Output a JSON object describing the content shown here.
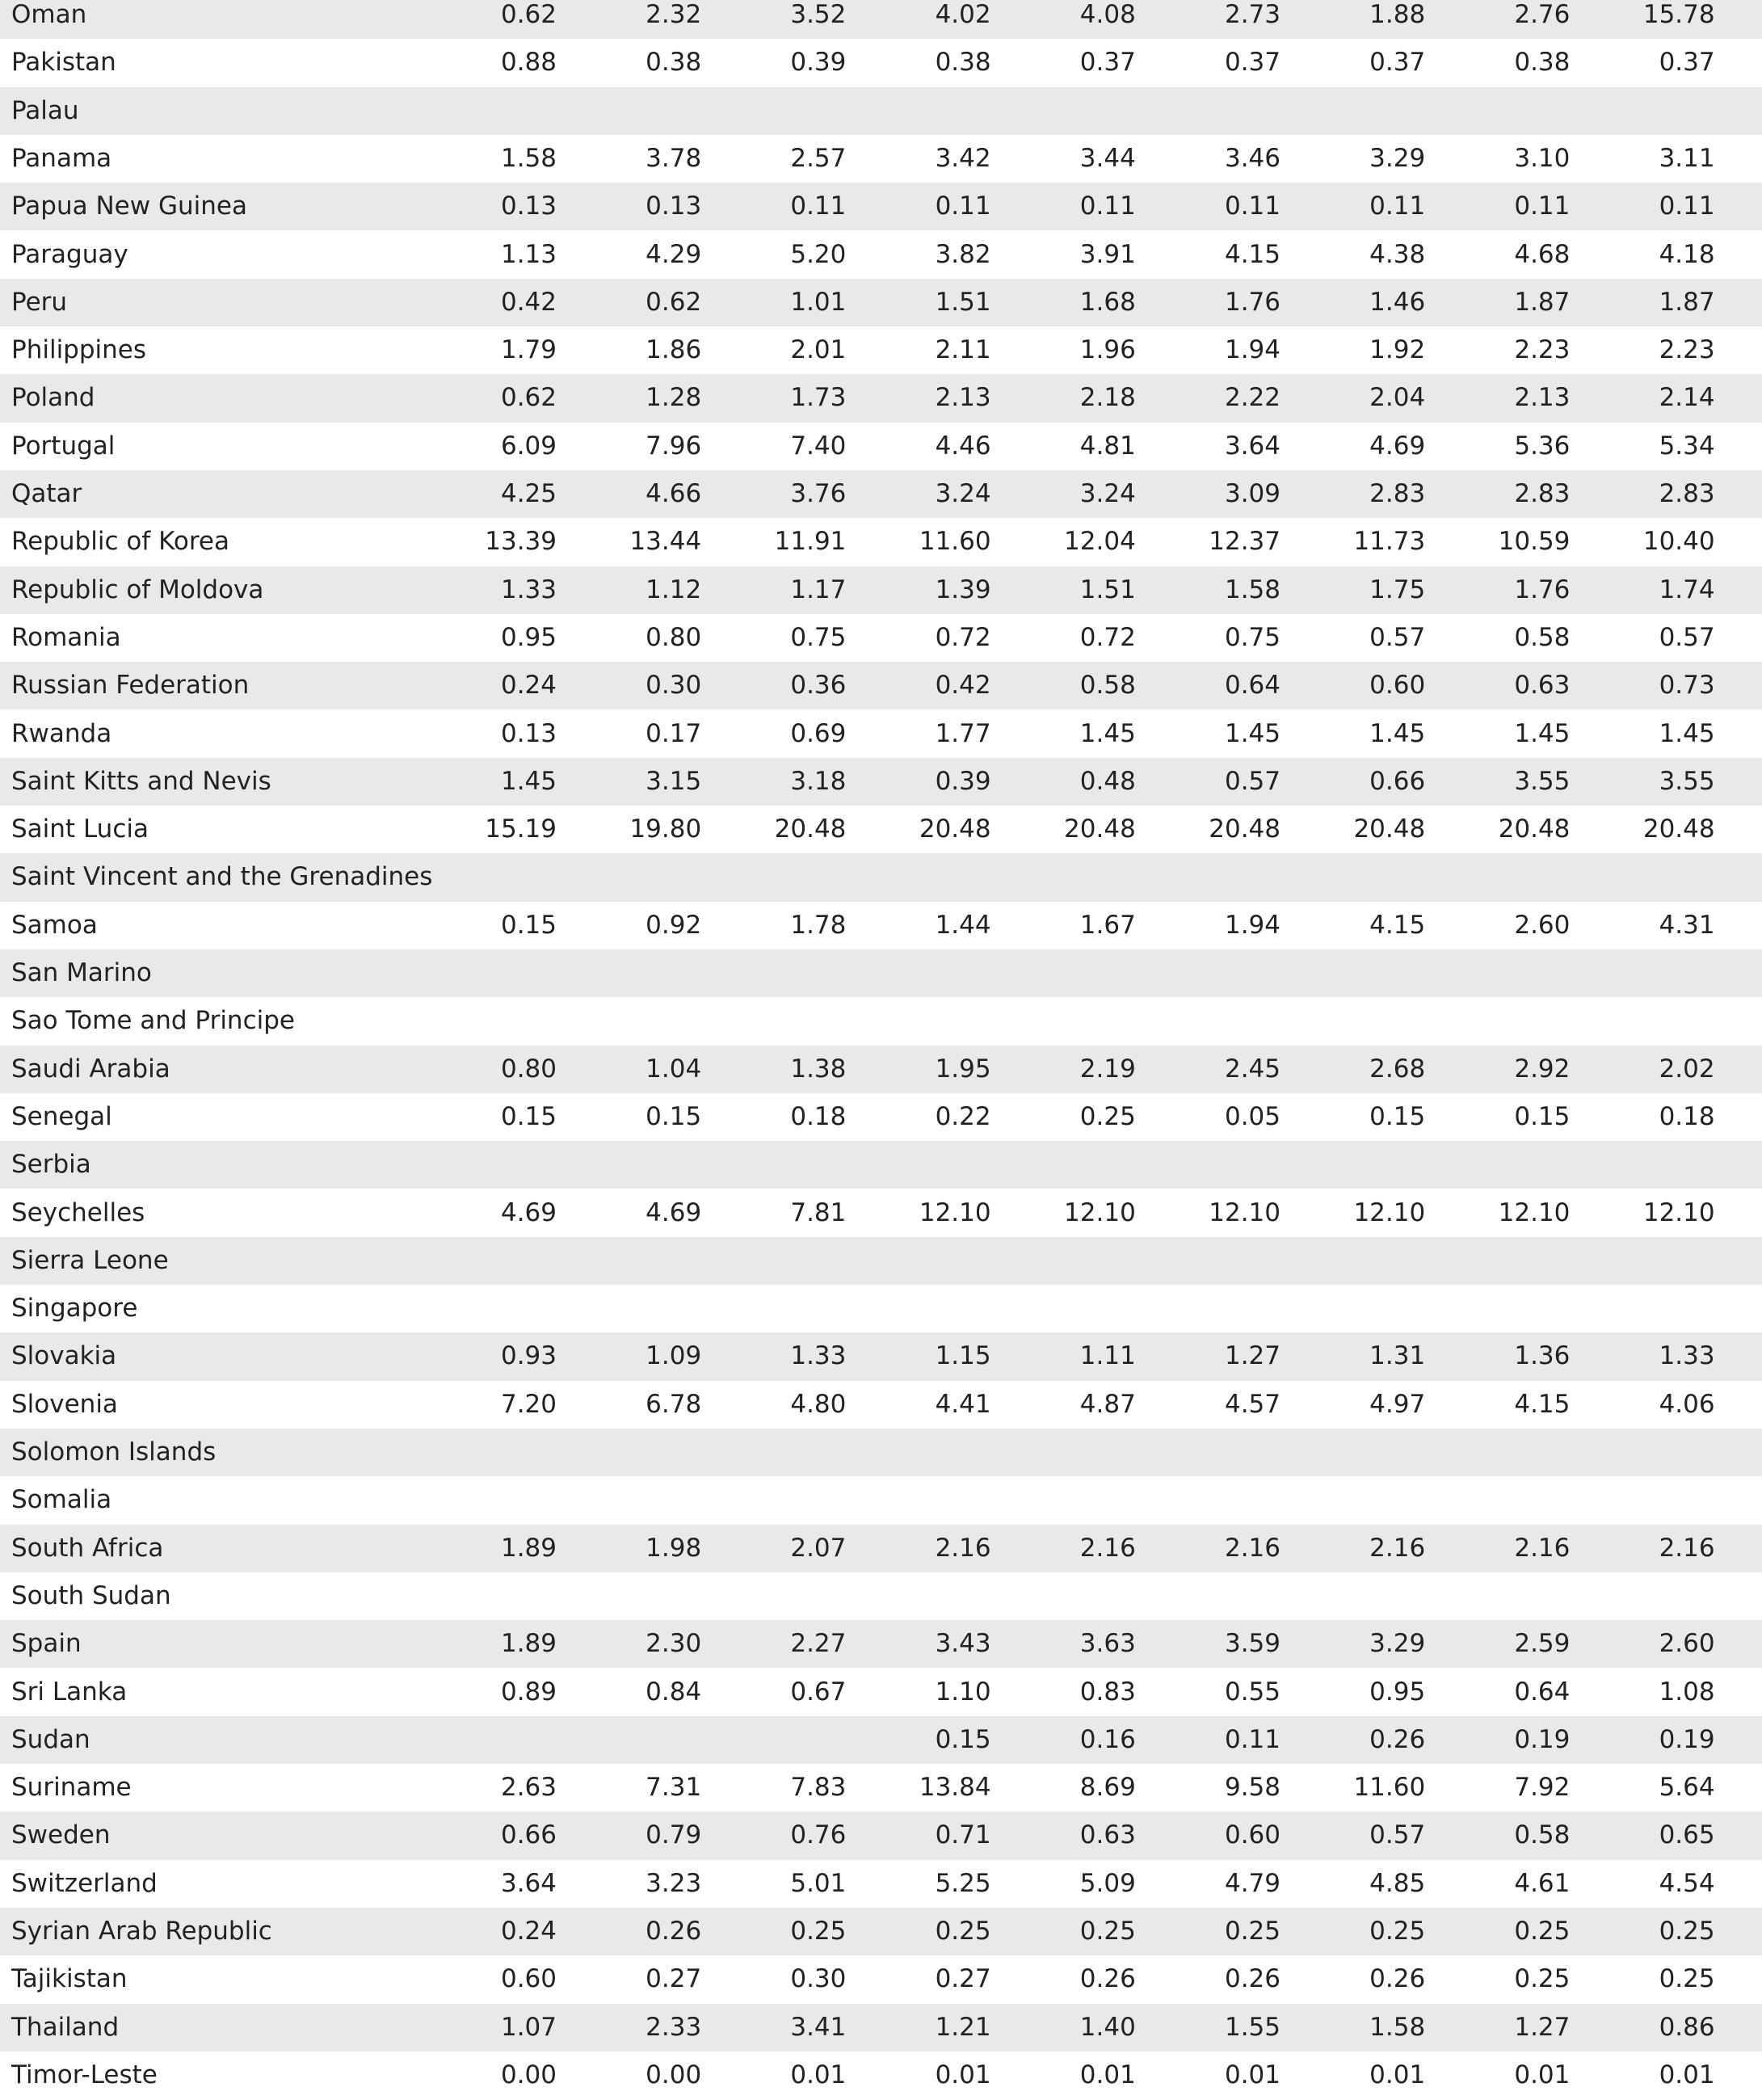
{
  "table": {
    "rows": [
      [
        "Oman",
        "0.62",
        "2.32",
        "3.52",
        "4.02",
        "4.08",
        "2.73",
        "1.88",
        "2.76",
        "15.78"
      ],
      [
        "Pakistan",
        "0.88",
        "0.38",
        "0.39",
        "0.38",
        "0.37",
        "0.37",
        "0.37",
        "0.38",
        "0.37"
      ],
      [
        "Palau",
        null,
        null,
        null,
        null,
        null,
        null,
        null,
        null,
        null
      ],
      [
        "Panama",
        "1.58",
        "3.78",
        "2.57",
        "3.42",
        "3.44",
        "3.46",
        "3.29",
        "3.10",
        "3.11"
      ],
      [
        "Papua New Guinea",
        "0.13",
        "0.13",
        "0.11",
        "0.11",
        "0.11",
        "0.11",
        "0.11",
        "0.11",
        "0.11"
      ],
      [
        "Paraguay",
        "1.13",
        "4.29",
        "5.20",
        "3.82",
        "3.91",
        "4.15",
        "4.38",
        "4.68",
        "4.18"
      ],
      [
        "Peru",
        "0.42",
        "0.62",
        "1.01",
        "1.51",
        "1.68",
        "1.76",
        "1.46",
        "1.87",
        "1.87"
      ],
      [
        "Philippines",
        "1.79",
        "1.86",
        "2.01",
        "2.11",
        "1.96",
        "1.94",
        "1.92",
        "2.23",
        "2.23"
      ],
      [
        "Poland",
        "0.62",
        "1.28",
        "1.73",
        "2.13",
        "2.18",
        "2.22",
        "2.04",
        "2.13",
        "2.14"
      ],
      [
        "Portugal",
        "6.09",
        "7.96",
        "7.40",
        "4.46",
        "4.81",
        "3.64",
        "4.69",
        "5.36",
        "5.34"
      ],
      [
        "Qatar",
        "4.25",
        "4.66",
        "3.76",
        "3.24",
        "3.24",
        "3.09",
        "2.83",
        "2.83",
        "2.83"
      ],
      [
        "Republic of Korea",
        "13.39",
        "13.44",
        "11.91",
        "11.60",
        "12.04",
        "12.37",
        "11.73",
        "10.59",
        "10.40"
      ],
      [
        "Republic of Moldova",
        "1.33",
        "1.12",
        "1.17",
        "1.39",
        "1.51",
        "1.58",
        "1.75",
        "1.76",
        "1.74"
      ],
      [
        "Romania",
        "0.95",
        "0.80",
        "0.75",
        "0.72",
        "0.72",
        "0.75",
        "0.57",
        "0.58",
        "0.57"
      ],
      [
        "Russian Federation",
        "0.24",
        "0.30",
        "0.36",
        "0.42",
        "0.58",
        "0.64",
        "0.60",
        "0.63",
        "0.73"
      ],
      [
        "Rwanda",
        "0.13",
        "0.17",
        "0.69",
        "1.77",
        "1.45",
        "1.45",
        "1.45",
        "1.45",
        "1.45"
      ],
      [
        "Saint Kitts and Nevis",
        "1.45",
        "3.15",
        "3.18",
        "0.39",
        "0.48",
        "0.57",
        "0.66",
        "3.55",
        "3.55"
      ],
      [
        "Saint Lucia",
        "15.19",
        "19.80",
        "20.48",
        "20.48",
        "20.48",
        "20.48",
        "20.48",
        "20.48",
        "20.48"
      ],
      [
        "Saint Vincent and the Grenadines",
        null,
        null,
        null,
        null,
        null,
        null,
        null,
        null,
        null
      ],
      [
        "Samoa",
        "0.15",
        "0.92",
        "1.78",
        "1.44",
        "1.67",
        "1.94",
        "4.15",
        "2.60",
        "4.31"
      ],
      [
        "San Marino",
        null,
        null,
        null,
        null,
        null,
        null,
        null,
        null,
        null
      ],
      [
        "Sao Tome and Principe",
        null,
        null,
        null,
        null,
        null,
        null,
        null,
        null,
        null
      ],
      [
        "Saudi Arabia",
        "0.80",
        "1.04",
        "1.38",
        "1.95",
        "2.19",
        "2.45",
        "2.68",
        "2.92",
        "2.02"
      ],
      [
        "Senegal",
        "0.15",
        "0.15",
        "0.18",
        "0.22",
        "0.25",
        "0.05",
        "0.15",
        "0.15",
        "0.18"
      ],
      [
        "Serbia",
        null,
        null,
        null,
        null,
        null,
        null,
        null,
        null,
        null
      ],
      [
        "Seychelles",
        "4.69",
        "4.69",
        "7.81",
        "12.10",
        "12.10",
        "12.10",
        "12.10",
        "12.10",
        "12.10"
      ],
      [
        "Sierra Leone",
        null,
        null,
        null,
        null,
        null,
        null,
        null,
        null,
        null
      ],
      [
        "Singapore",
        null,
        null,
        null,
        null,
        null,
        null,
        null,
        null,
        null
      ],
      [
        "Slovakia",
        "0.93",
        "1.09",
        "1.33",
        "1.15",
        "1.11",
        "1.27",
        "1.31",
        "1.36",
        "1.33"
      ],
      [
        "Slovenia",
        "7.20",
        "6.78",
        "4.80",
        "4.41",
        "4.87",
        "4.57",
        "4.97",
        "4.15",
        "4.06"
      ],
      [
        "Solomon Islands",
        null,
        null,
        null,
        null,
        null,
        null,
        null,
        null,
        null
      ],
      [
        "Somalia",
        null,
        null,
        null,
        null,
        null,
        null,
        null,
        null,
        null
      ],
      [
        "South Africa",
        "1.89",
        "1.98",
        "2.07",
        "2.16",
        "2.16",
        "2.16",
        "2.16",
        "2.16",
        "2.16"
      ],
      [
        "South Sudan",
        null,
        null,
        null,
        null,
        null,
        null,
        null,
        null,
        null
      ],
      [
        "Spain",
        "1.89",
        "2.30",
        "2.27",
        "3.43",
        "3.63",
        "3.59",
        "3.29",
        "2.59",
        "2.60"
      ],
      [
        "Sri Lanka",
        "0.89",
        "0.84",
        "0.67",
        "1.10",
        "0.83",
        "0.55",
        "0.95",
        "0.64",
        "1.08"
      ],
      [
        "Sudan",
        null,
        null,
        null,
        "0.15",
        "0.16",
        "0.11",
        "0.26",
        "0.19",
        "0.19"
      ],
      [
        "Suriname",
        "2.63",
        "7.31",
        "7.83",
        "13.84",
        "8.69",
        "9.58",
        "11.60",
        "7.92",
        "5.64"
      ],
      [
        "Sweden",
        "0.66",
        "0.79",
        "0.76",
        "0.71",
        "0.63",
        "0.60",
        "0.57",
        "0.58",
        "0.65"
      ],
      [
        "Switzerland",
        "3.64",
        "3.23",
        "5.01",
        "5.25",
        "5.09",
        "4.79",
        "4.85",
        "4.61",
        "4.54"
      ],
      [
        "Syrian Arab Republic",
        "0.24",
        "0.26",
        "0.25",
        "0.25",
        "0.25",
        "0.25",
        "0.25",
        "0.25",
        "0.25"
      ],
      [
        "Tajikistan",
        "0.60",
        "0.27",
        "0.30",
        "0.27",
        "0.26",
        "0.26",
        "0.26",
        "0.25",
        "0.25"
      ],
      [
        "Thailand",
        "1.07",
        "2.33",
        "3.41",
        "1.21",
        "1.40",
        "1.55",
        "1.58",
        "1.27",
        "0.86"
      ],
      [
        "Timor-Leste",
        "0.00",
        "0.00",
        "0.01",
        "0.01",
        "0.01",
        "0.01",
        "0.01",
        "0.01",
        "0.01"
      ]
    ]
  }
}
